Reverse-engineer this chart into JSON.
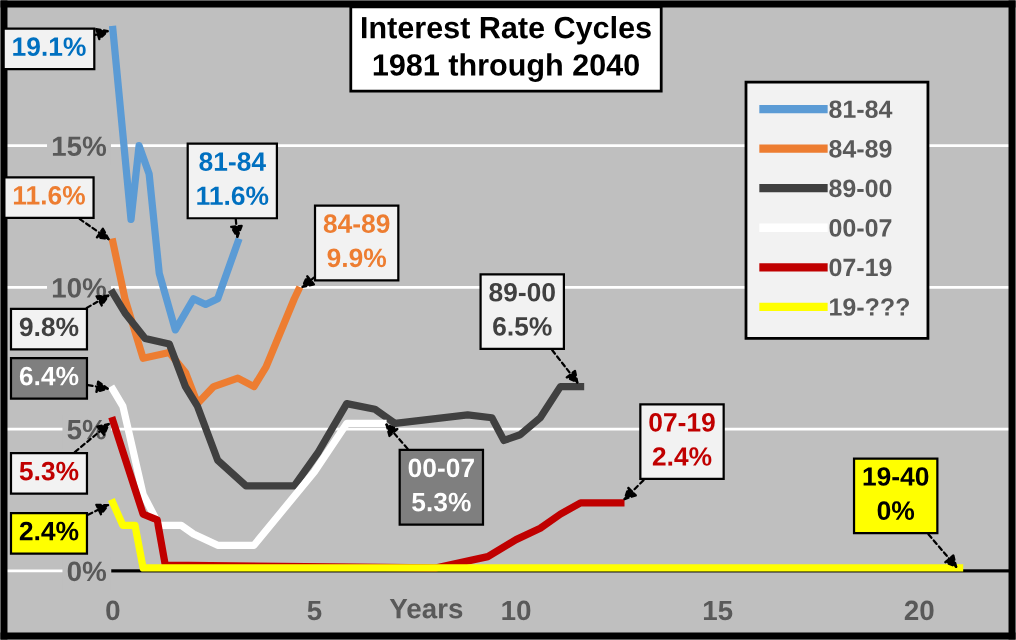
{
  "chart_data": {
    "type": "line",
    "title": "Interest Rate Cycles\n1981 through 2040",
    "xlabel": "Years",
    "series": [
      {
        "name": "81-84",
        "color": "#5b9bd5",
        "x": [
          0,
          0.45,
          0.65,
          0.9,
          1.15,
          1.55,
          2.0,
          2.3,
          2.6,
          3.1
        ],
        "values": [
          19.1,
          12.4,
          15.0,
          14.0,
          10.5,
          8.5,
          9.6,
          9.4,
          9.6,
          11.6
        ]
      },
      {
        "name": "84-89",
        "color": "#ed7d31",
        "x": [
          0,
          0.3,
          0.75,
          1.4,
          1.8,
          2.1,
          2.5,
          3.1,
          3.5,
          3.8,
          4.5,
          4.6
        ],
        "values": [
          11.6,
          9.6,
          7.5,
          7.7,
          7.0,
          5.9,
          6.5,
          6.8,
          6.5,
          7.2,
          9.6,
          9.9
        ]
      },
      {
        "name": "89-00",
        "color": "#404040",
        "x": [
          0,
          0.3,
          0.8,
          1.4,
          1.8,
          2.1,
          2.6,
          3.3,
          4.5,
          5.1,
          5.8,
          6.5,
          7.0,
          8.8,
          9.4,
          9.7,
          10.1,
          10.6,
          11.1,
          11.6
        ],
        "values": [
          9.8,
          9.1,
          8.2,
          8.0,
          6.5,
          5.8,
          3.9,
          3.0,
          3.0,
          4.2,
          5.9,
          5.7,
          5.2,
          5.5,
          5.4,
          4.6,
          4.8,
          5.4,
          6.5,
          6.5
        ]
      },
      {
        "name": "00-07",
        "color": "#ffffff",
        "x": [
          0,
          0.25,
          0.75,
          1.15,
          1.7,
          2.0,
          2.6,
          3.5,
          5.0,
          5.8,
          6.7
        ],
        "values": [
          6.4,
          5.8,
          2.7,
          1.6,
          1.6,
          1.3,
          0.9,
          0.9,
          3.5,
          5.2,
          5.2
        ]
      },
      {
        "name": "07-19",
        "color": "#c00000",
        "x": [
          0,
          0.25,
          0.75,
          1.1,
          1.3,
          8.0,
          9.3,
          10.0,
          10.6,
          11.1,
          11.6,
          12.6
        ],
        "values": [
          5.3,
          4.2,
          2.0,
          1.8,
          0.2,
          0.1,
          0.5,
          1.1,
          1.5,
          2.0,
          2.4,
          2.4
        ]
      },
      {
        "name": "19-???",
        "color": "#ffff00",
        "x": [
          0,
          0.25,
          0.55,
          0.75,
          21
        ],
        "values": [
          2.4,
          1.6,
          1.6,
          0.1,
          0.1
        ]
      }
    ],
    "xlim": [
      -2.7,
      22.3
    ],
    "ylim": [
      -2.3,
      20
    ],
    "xticks": [
      0,
      5,
      10,
      15,
      20
    ],
    "yticks": [
      {
        "value": 0,
        "label": "0%"
      },
      {
        "value": 5,
        "label": "5%"
      },
      {
        "value": 10,
        "label": "10%"
      },
      {
        "value": 15,
        "label": "15%"
      }
    ],
    "grid": "y",
    "legend": "top right",
    "line_style": "solid",
    "annotations": [
      {
        "text": "19.1%",
        "x": 0,
        "y": 19.1
      },
      {
        "text": "11.6%",
        "x": 0,
        "y": 11.6
      },
      {
        "text": "9.8%",
        "x": 0,
        "y": 9.8
      },
      {
        "text": "6.4%",
        "x": 0,
        "y": 6.4
      },
      {
        "text": "5.3%",
        "x": 0,
        "y": 5.3
      },
      {
        "text": "2.4%",
        "x": 0,
        "y": 2.4
      },
      {
        "text": "81-84\n11.6%",
        "x": 3.1,
        "y": 11.6
      },
      {
        "text": "84-89\n9.9%",
        "x": 4.6,
        "y": 9.9
      },
      {
        "text": "89-00\n6.5%",
        "x": 11.6,
        "y": 6.5
      },
      {
        "text": "00-07\n5.3%",
        "x": 6.7,
        "y": 5.3
      },
      {
        "text": "07-19\n2.4%",
        "x": 12.6,
        "y": 2.4
      },
      {
        "text": "19-40\n0%",
        "x": 21,
        "y": 0
      }
    ]
  }
}
